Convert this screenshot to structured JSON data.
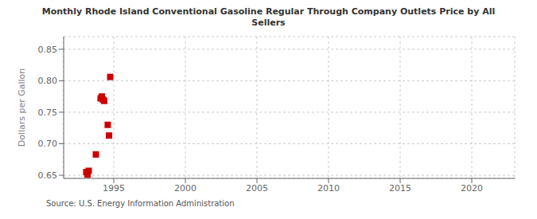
{
  "chart_data": {
    "type": "scatter",
    "title": "Monthly Rhode Island Conventional Gasoline Regular Through Company Outlets Price by All\nSellers",
    "ylabel": "Dollars per Gallon",
    "annotation": "Source: U.S. Energy Information Administration",
    "color": "#cc0000",
    "marker": "square",
    "grid": true,
    "xlim": [
      1991.5,
      2023
    ],
    "ylim": [
      0.645,
      0.87
    ],
    "xticks": [
      1995,
      2000,
      2005,
      2010,
      2015,
      2020
    ],
    "yticks": [
      0.65,
      {
        "value": 0.7,
        "label": "0.70"
      },
      0.75,
      {
        "value": 0.8,
        "label": "0.80"
      },
      0.85
    ],
    "x": [
      1993.08,
      1993.17,
      1993.25,
      1993.75,
      1994.08,
      1994.17,
      1994.25,
      1994.33,
      1994.58,
      1994.67,
      1994.75
    ],
    "values": [
      0.655,
      0.651,
      0.657,
      0.683,
      0.772,
      0.775,
      0.77,
      0.768,
      0.73,
      0.713,
      0.806
    ]
  }
}
